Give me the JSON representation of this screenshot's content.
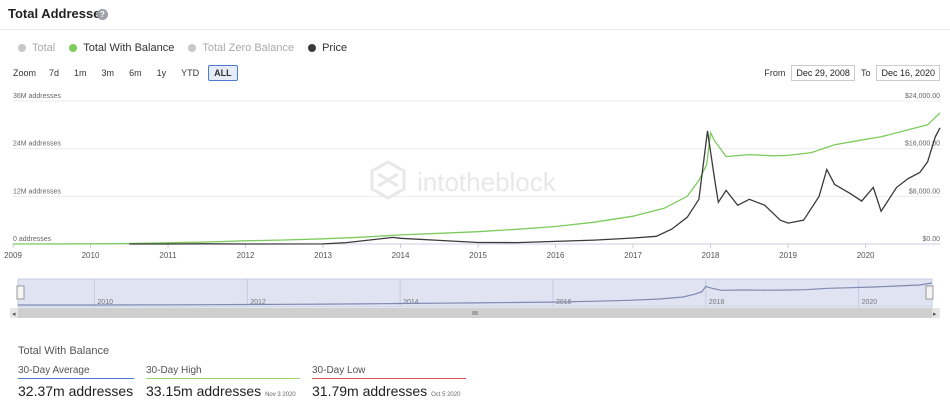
{
  "header": {
    "title": "Total Addresses",
    "help_glyph": "?"
  },
  "legend": [
    {
      "label": "Total",
      "color": "#c8c8c8",
      "active": false
    },
    {
      "label": "Total With Balance",
      "color": "#7ccc5d",
      "active": true
    },
    {
      "label": "Total Zero Balance",
      "color": "#c8c8c8",
      "active": false
    },
    {
      "label": "Price",
      "color": "#3a3a3a",
      "active": true
    }
  ],
  "zoom": {
    "label": "Zoom",
    "buttons": [
      "7d",
      "1m",
      "3m",
      "6m",
      "1y",
      "YTD",
      "ALL"
    ],
    "selected": "ALL"
  },
  "range": {
    "from_label": "From",
    "from_value": "Dec 29, 2008",
    "to_label": "To",
    "to_value": "Dec 16, 2020"
  },
  "watermark": "intotheblock",
  "navigator": {
    "x_ticks": [
      "2010",
      "2012",
      "2014",
      "2016",
      "2018",
      "2020"
    ]
  },
  "chart_data": {
    "type": "line",
    "title": "Total Addresses",
    "x_ticks": [
      "2009",
      "2010",
      "2011",
      "2012",
      "2013",
      "2014",
      "2015",
      "2016",
      "2017",
      "2018",
      "2019",
      "2020"
    ],
    "xlim": [
      2009,
      2020.96
    ],
    "y_left": {
      "ticks": [
        "0 addresses",
        "12M addresses",
        "24M addresses",
        "36M addresses"
      ],
      "lim": [
        0,
        36000000
      ]
    },
    "y_right": {
      "ticks": [
        "$0.00",
        "$8,000.00",
        "$16,000.00",
        "$24,000.00"
      ],
      "lim": [
        0,
        24000
      ]
    },
    "grid": true,
    "series": [
      {
        "name": "Total With Balance",
        "axis": "left",
        "color": "#7ccc5d",
        "points": [
          [
            2009,
            0
          ],
          [
            2010,
            50000
          ],
          [
            2010.5,
            120000
          ],
          [
            2011,
            300000
          ],
          [
            2011.5,
            500000
          ],
          [
            2012,
            800000
          ],
          [
            2012.5,
            1000000
          ],
          [
            2013,
            1300000
          ],
          [
            2013.5,
            1700000
          ],
          [
            2014,
            2300000
          ],
          [
            2014.5,
            2700000
          ],
          [
            2015,
            3100000
          ],
          [
            2015.5,
            3700000
          ],
          [
            2016,
            4400000
          ],
          [
            2016.5,
            5500000
          ],
          [
            2017,
            7000000
          ],
          [
            2017.4,
            9000000
          ],
          [
            2017.7,
            12000000
          ],
          [
            2017.85,
            16000000
          ],
          [
            2017.95,
            20000000
          ],
          [
            2018.0,
            28000000
          ],
          [
            2018.05,
            26000000
          ],
          [
            2018.2,
            22000000
          ],
          [
            2018.5,
            22500000
          ],
          [
            2018.8,
            22200000
          ],
          [
            2019.0,
            22300000
          ],
          [
            2019.3,
            23000000
          ],
          [
            2019.6,
            25000000
          ],
          [
            2019.9,
            26000000
          ],
          [
            2020.2,
            27000000
          ],
          [
            2020.5,
            28500000
          ],
          [
            2020.8,
            30000000
          ],
          [
            2020.96,
            33000000
          ]
        ]
      },
      {
        "name": "Price",
        "axis": "right",
        "color": "#3a3a3a",
        "points": [
          [
            2010.5,
            0.1
          ],
          [
            2011,
            0.3
          ],
          [
            2011.45,
            30
          ],
          [
            2012,
            5
          ],
          [
            2013,
            13
          ],
          [
            2013.3,
            230
          ],
          [
            2013.9,
            1100
          ],
          [
            2014,
            950
          ],
          [
            2014.5,
            600
          ],
          [
            2015,
            250
          ],
          [
            2015.5,
            230
          ],
          [
            2016,
            430
          ],
          [
            2016.5,
            650
          ],
          [
            2017,
            1000
          ],
          [
            2017.3,
            1300
          ],
          [
            2017.5,
            2500
          ],
          [
            2017.7,
            4500
          ],
          [
            2017.85,
            7500
          ],
          [
            2017.96,
            19000
          ],
          [
            2018.05,
            11000
          ],
          [
            2018.1,
            7000
          ],
          [
            2018.2,
            9000
          ],
          [
            2018.35,
            6500
          ],
          [
            2018.5,
            7500
          ],
          [
            2018.7,
            6500
          ],
          [
            2018.9,
            4000
          ],
          [
            2019.0,
            3500
          ],
          [
            2019.2,
            4000
          ],
          [
            2019.4,
            8000
          ],
          [
            2019.5,
            12500
          ],
          [
            2019.6,
            10000
          ],
          [
            2019.8,
            8500
          ],
          [
            2019.95,
            7200
          ],
          [
            2020.1,
            9500
          ],
          [
            2020.2,
            5500
          ],
          [
            2020.4,
            9500
          ],
          [
            2020.55,
            11000
          ],
          [
            2020.7,
            12000
          ],
          [
            2020.8,
            13800
          ],
          [
            2020.9,
            18000
          ],
          [
            2020.96,
            19500
          ]
        ]
      }
    ]
  },
  "stats": {
    "heading": "Total With Balance",
    "items": [
      {
        "label": "30-Day Average",
        "value": "32.37m addresses",
        "date": "",
        "color": "#4a7bd0"
      },
      {
        "label": "30-Day High",
        "value": "33.15m addresses",
        "date": "Nov 3 2020",
        "color": "#9fd36b"
      },
      {
        "label": "30-Day Low",
        "value": "31.79m addresses",
        "date": "Oct 5 2020",
        "color": "#e05a5a"
      }
    ]
  }
}
